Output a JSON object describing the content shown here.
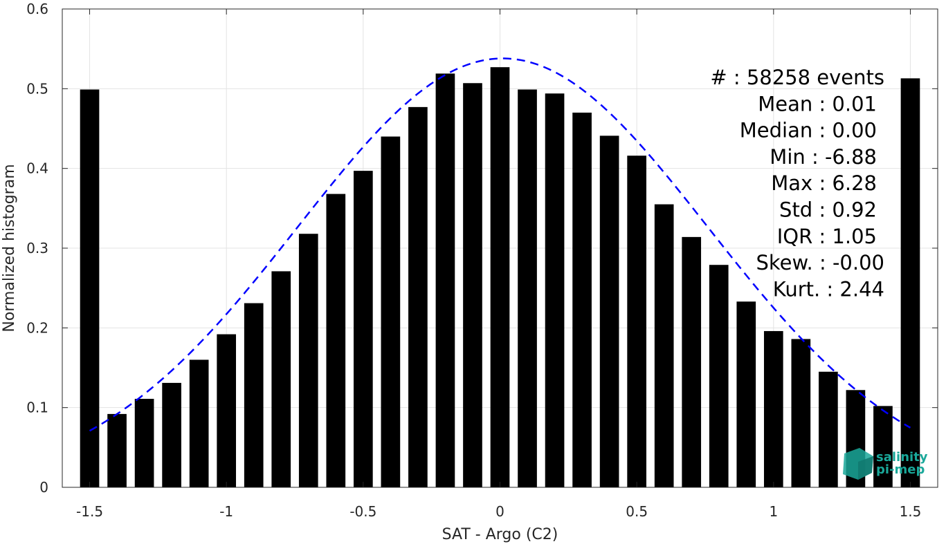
{
  "chart_data": {
    "type": "bar",
    "xlabel": "SAT - Argo (C2)",
    "ylabel": "Normalized histogram",
    "xlim": [
      -1.6,
      1.6
    ],
    "ylim": [
      0,
      0.6
    ],
    "xticks": [
      -1.5,
      -1,
      -0.5,
      0,
      0.5,
      1,
      1.5
    ],
    "xtick_labels": [
      "-1.5",
      "-1",
      "-0.5",
      "0",
      "0.5",
      "1",
      "1.5"
    ],
    "yticks": [
      0,
      0.1,
      0.2,
      0.3,
      0.4,
      0.5,
      0.6
    ],
    "ytick_labels": [
      "0",
      "0.1",
      "0.2",
      "0.3",
      "0.4",
      "0.5",
      "0.6"
    ],
    "grid": true,
    "bar_color": "#000000",
    "fit_color": "#0000ff",
    "x": [
      -1.5,
      -1.4,
      -1.3,
      -1.2,
      -1.1,
      -1.0,
      -0.9,
      -0.8,
      -0.7,
      -0.6,
      -0.5,
      -0.4,
      -0.3,
      -0.2,
      -0.1,
      0.0,
      0.1,
      0.2,
      0.3,
      0.4,
      0.5,
      0.6,
      0.7,
      0.8,
      0.9,
      1.0,
      1.1,
      1.2,
      1.3,
      1.4,
      1.5
    ],
    "values": [
      0.499,
      0.092,
      0.111,
      0.131,
      0.16,
      0.192,
      0.231,
      0.271,
      0.318,
      0.368,
      0.397,
      0.44,
      0.477,
      0.519,
      0.507,
      0.527,
      0.499,
      0.494,
      0.47,
      0.441,
      0.416,
      0.355,
      0.314,
      0.279,
      0.233,
      0.196,
      0.186,
      0.145,
      0.122,
      0.102,
      0.513
    ],
    "fit": {
      "type": "normal",
      "mean": 0.01,
      "std": 0.75,
      "peak": 0.538,
      "x_range": [
        -1.5,
        1.5
      ],
      "style": "dashed"
    },
    "stats": [
      {
        "label": "#  : 58258 events"
      },
      {
        "label": "Mean : 0.01"
      },
      {
        "label": "Median : 0.00"
      },
      {
        "label": "Min : -6.88"
      },
      {
        "label": "Max : 6.28"
      },
      {
        "label": "Std : 0.92"
      },
      {
        "label": "IQR : 1.05"
      },
      {
        "label": "Skew. : -0.00"
      },
      {
        "label": "Kurt. : 2.44"
      }
    ]
  },
  "logo": {
    "line1": "salinity",
    "line2": "pi-mep",
    "color": "#1aa89a"
  }
}
